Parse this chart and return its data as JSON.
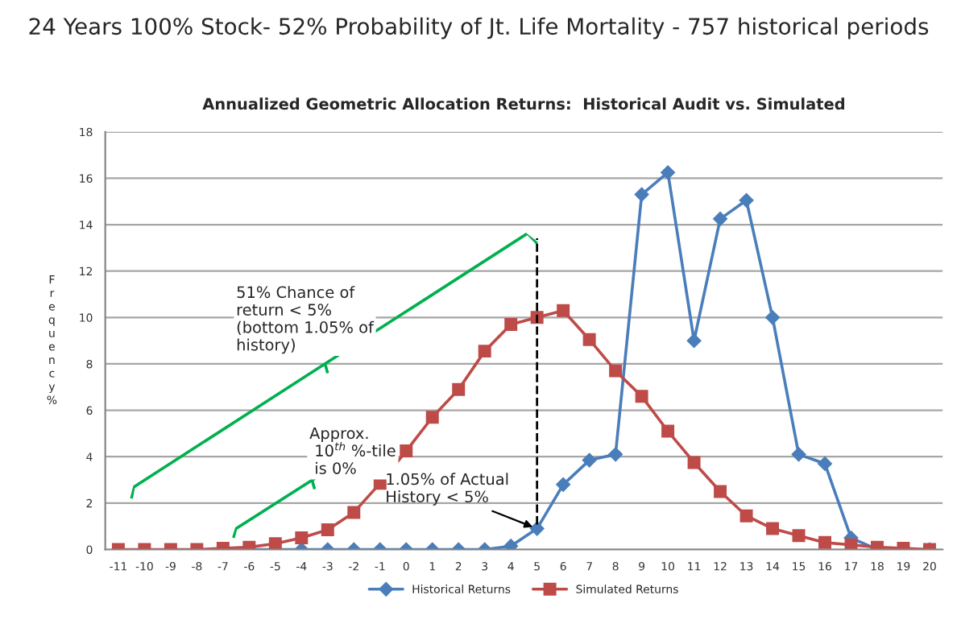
{
  "chart_data": {
    "type": "line",
    "title": "24 Years 100% Stock- 52% Probability of Jt. Life Mortality - 757 historical periods",
    "subtitle": "Annualized Geometric Allocation Returns:  Historical Audit vs. Simulated",
    "ylabel": "Frequency %",
    "categories": [
      "-11",
      "-10",
      "-9",
      "-8",
      "-7",
      "-6",
      "-5",
      "-4",
      "-3",
      "-2",
      "-1",
      "0",
      "1",
      "2",
      "3",
      "4",
      "5",
      "6",
      "7",
      "8",
      "9",
      "10",
      "11",
      "12",
      "13",
      "14",
      "15",
      "16",
      "17",
      "18",
      "19",
      "20"
    ],
    "series": [
      {
        "name": "Historical Returns",
        "color": "#4a7ebb",
        "marker": "diamond",
        "values": [
          null,
          null,
          null,
          null,
          0,
          0,
          0,
          0,
          0,
          0,
          0,
          0,
          0,
          0,
          0,
          0.15,
          0.9,
          2.8,
          3.85,
          4.1,
          15.3,
          16.25,
          9.0,
          14.25,
          15.05,
          10.0,
          4.1,
          3.7,
          0.5,
          0,
          0,
          0
        ]
      },
      {
        "name": "Simulated Returns",
        "color": "#be4b48",
        "marker": "square",
        "values": [
          0,
          0,
          0,
          0,
          0.05,
          0.1,
          0.25,
          0.5,
          0.85,
          1.6,
          2.85,
          4.25,
          5.7,
          6.9,
          8.55,
          9.7,
          10.0,
          10.3,
          9.05,
          7.7,
          6.6,
          5.1,
          3.75,
          2.5,
          1.45,
          0.9,
          0.6,
          0.3,
          0.2,
          0.1,
          0.05,
          0
        ]
      }
    ],
    "ylim": [
      0,
      18
    ],
    "yticks": [
      0,
      2,
      4,
      6,
      8,
      10,
      12,
      14,
      16,
      18
    ],
    "grid": "y",
    "legend": "bottom",
    "ref_lines": [
      {
        "axis": "x",
        "value": "5",
        "color": "#000000",
        "line_style": "dashed"
      }
    ],
    "annotations": [
      "51% Chance of\nreturn < 5%\n(bottom 1.05% of\nhistory)",
      "Approx.\n 10$^{th}$ %-tile\n is 0%",
      {
        "text": "1.05% of Actual\nHistory < 5%",
        "x": "5",
        "y": 0.9
      }
    ]
  }
}
